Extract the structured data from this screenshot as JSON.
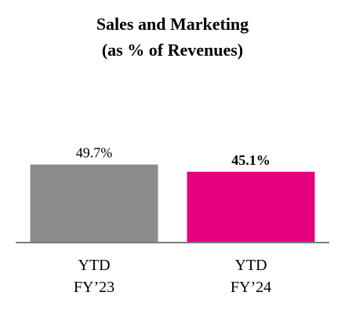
{
  "chart_data": {
    "type": "bar",
    "title": [
      "Sales and Marketing",
      "(as % of Revenues)"
    ],
    "categories": [
      [
        "YTD",
        "FY’23"
      ],
      [
        "YTD",
        "FY’24"
      ]
    ],
    "values": [
      49.7,
      45.1
    ],
    "value_labels": [
      "49.7%",
      "45.1%"
    ],
    "value_label_bold": [
      false,
      true
    ],
    "bar_colors": [
      "#8c8c8c",
      "#e5007e"
    ],
    "axis_color": "#7a7a7a",
    "ylim": [
      0,
      52
    ],
    "grid": false,
    "legend": "none"
  }
}
